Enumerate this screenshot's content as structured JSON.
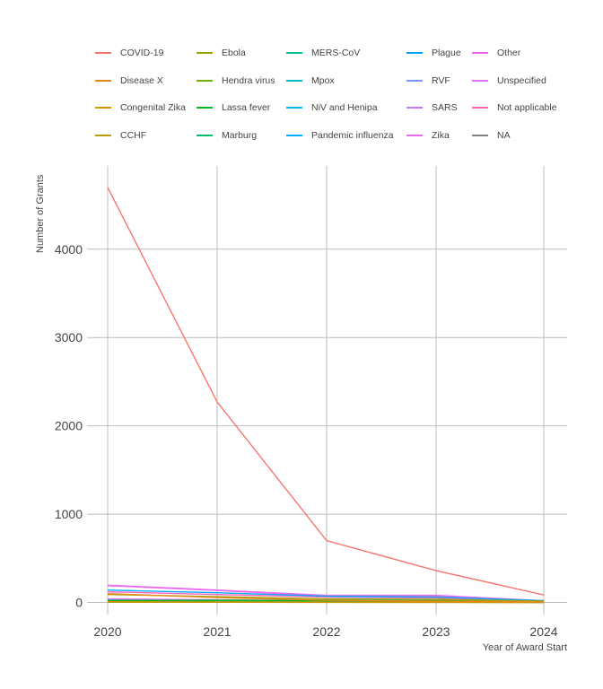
{
  "chart_data": {
    "type": "line",
    "xlabel": "Year of Award Start",
    "ylabel": "Number of Grants",
    "x": [
      "2020",
      "2021",
      "2022",
      "2023",
      "2024"
    ],
    "xlim": [
      2020,
      2024
    ],
    "ylim": [
      0,
      4800
    ],
    "y_ticks": [
      "0",
      "1000",
      "2000",
      "3000",
      "4000"
    ],
    "grid": true,
    "legend_position": "top",
    "series": [
      {
        "name": "COVID-19",
        "color": "#F8766D",
        "values": [
          4700,
          2270,
          700,
          360,
          85
        ]
      },
      {
        "name": "Disease X",
        "color": "#E7861B",
        "values": [
          100,
          55,
          25,
          15,
          5
        ]
      },
      {
        "name": "Congenital Zika",
        "color": "#D39200",
        "values": [
          5,
          3,
          2,
          1,
          0
        ]
      },
      {
        "name": "CCHF",
        "color": "#BB9D00",
        "values": [
          8,
          6,
          4,
          3,
          1
        ]
      },
      {
        "name": "Ebola",
        "color": "#9DA700",
        "values": [
          90,
          65,
          40,
          35,
          15
        ]
      },
      {
        "name": "Hendra virus",
        "color": "#73B000",
        "values": [
          3,
          2,
          1,
          1,
          0
        ]
      },
      {
        "name": "Lassa fever",
        "color": "#00B81F",
        "values": [
          20,
          25,
          20,
          18,
          8
        ]
      },
      {
        "name": "Marburg",
        "color": "#00BE6C",
        "values": [
          10,
          12,
          10,
          9,
          5
        ]
      },
      {
        "name": "MERS-CoV",
        "color": "#00C094",
        "values": [
          25,
          15,
          10,
          8,
          3
        ]
      },
      {
        "name": "Mpox",
        "color": "#00BFC4",
        "values": [
          2,
          3,
          30,
          25,
          10
        ]
      },
      {
        "name": "NiV and Henipa",
        "color": "#00B8E5",
        "values": [
          15,
          18,
          15,
          14,
          6
        ]
      },
      {
        "name": "Pandemic influenza",
        "color": "#00ADFA",
        "values": [
          140,
          110,
          70,
          60,
          20
        ]
      },
      {
        "name": "Plague",
        "color": "#00A5FF",
        "values": [
          5,
          4,
          3,
          3,
          1
        ]
      },
      {
        "name": "RVF",
        "color": "#7997FF",
        "values": [
          10,
          8,
          7,
          6,
          3
        ]
      },
      {
        "name": "SARS",
        "color": "#C77CFF",
        "values": [
          30,
          25,
          15,
          10,
          4
        ]
      },
      {
        "name": "Zika",
        "color": "#E76BF3",
        "values": [
          40,
          30,
          20,
          15,
          5
        ]
      },
      {
        "name": "Other",
        "color": "#F066EA",
        "values": [
          190,
          135,
          75,
          70,
          20
        ]
      },
      {
        "name": "Unspecified",
        "color": "#DC71FA",
        "values": [
          195,
          140,
          80,
          80,
          20
        ]
      },
      {
        "name": "Not applicable",
        "color": "#FF62BC",
        "values": [
          120,
          90,
          60,
          50,
          15
        ]
      },
      {
        "name": "NA",
        "color": "#7F7F7F",
        "values": [
          30,
          20,
          10,
          8,
          2
        ]
      }
    ]
  }
}
